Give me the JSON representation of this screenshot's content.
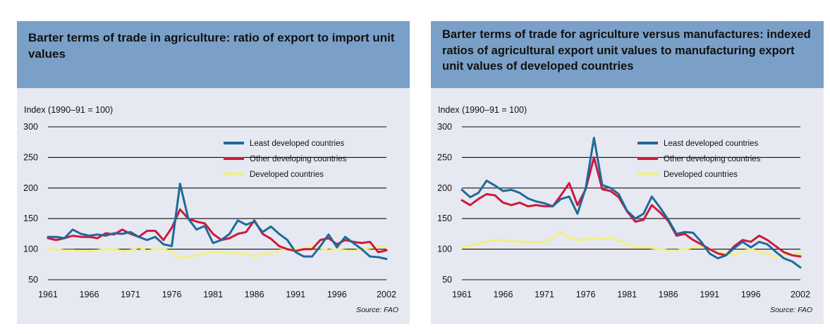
{
  "charts": [
    {
      "title": "Barter terms of trade in agriculture: ratio of export to import unit values",
      "ylabel": "Index (1990–91 = 100)",
      "source": "Source: FAO"
    },
    {
      "title": "Barter terms of trade for agriculture versus manufactures: indexed ratios of agricultural export unit values to manufacturing export unit values of developed countries",
      "ylabel": "Index (1990–91 = 100)",
      "source": "Source: FAO"
    }
  ],
  "chart_data": [
    {
      "type": "line",
      "title": "Barter terms of trade in agriculture: ratio of export to import unit values",
      "ylabel": "Index (1990–91 = 100)",
      "xlabel": "",
      "x": [
        1961,
        1962,
        1963,
        1964,
        1965,
        1966,
        1967,
        1968,
        1969,
        1970,
        1971,
        1972,
        1973,
        1974,
        1975,
        1976,
        1977,
        1978,
        1979,
        1980,
        1981,
        1982,
        1983,
        1984,
        1985,
        1986,
        1987,
        1988,
        1989,
        1990,
        1991,
        1992,
        1993,
        1994,
        1995,
        1996,
        1997,
        1998,
        1999,
        2000,
        2001,
        2002
      ],
      "xticks": [
        1961,
        1966,
        1971,
        1976,
        1981,
        1986,
        1991,
        1996,
        2002
      ],
      "yticks": [
        50,
        100,
        150,
        200,
        250,
        300
      ],
      "ylim": [
        50,
        300
      ],
      "xlim": [
        1961,
        2002
      ],
      "grid": true,
      "legend_position": "top-right",
      "series": [
        {
          "name": "Least developed countries",
          "color": "#1f6a9a",
          "values": [
            120,
            120,
            118,
            132,
            125,
            122,
            124,
            122,
            126,
            125,
            128,
            120,
            115,
            120,
            108,
            105,
            207,
            150,
            132,
            138,
            110,
            115,
            125,
            147,
            140,
            145,
            128,
            137,
            125,
            115,
            95,
            88,
            88,
            105,
            124,
            103,
            120,
            110,
            100,
            88,
            87,
            84
          ]
        },
        {
          "name": "Other developing countries",
          "color": "#d0183c",
          "values": [
            118,
            115,
            118,
            122,
            120,
            120,
            118,
            126,
            124,
            132,
            125,
            120,
            130,
            130,
            115,
            135,
            165,
            150,
            145,
            142,
            125,
            115,
            118,
            125,
            128,
            147,
            125,
            117,
            105,
            100,
            97,
            100,
            100,
            115,
            118,
            108,
            115,
            112,
            110,
            112,
            95,
            98
          ]
        },
        {
          "name": "Developed countries",
          "color": "#f2ef82",
          "values": [
            100,
            100,
            98,
            98,
            97,
            97,
            98,
            100,
            100,
            97,
            98,
            103,
            97,
            100,
            100,
            96,
            85,
            88,
            90,
            92,
            96,
            95,
            93,
            94,
            92,
            88,
            92,
            93,
            98,
            100,
            100,
            102,
            104,
            102,
            98,
            100,
            98,
            97,
            100,
            102,
            104,
            105
          ]
        }
      ]
    },
    {
      "type": "line",
      "title": "Barter terms of trade for agriculture versus manufactures: indexed ratios of agricultural export unit values to manufacturing export unit values of developed countries",
      "ylabel": "Index (1990–91 = 100)",
      "xlabel": "",
      "x": [
        1961,
        1962,
        1963,
        1964,
        1965,
        1966,
        1967,
        1968,
        1969,
        1970,
        1971,
        1972,
        1973,
        1974,
        1975,
        1976,
        1977,
        1978,
        1979,
        1980,
        1981,
        1982,
        1983,
        1984,
        1985,
        1986,
        1987,
        1988,
        1989,
        1990,
        1991,
        1992,
        1993,
        1994,
        1995,
        1996,
        1997,
        1998,
        1999,
        2000,
        2001,
        2002
      ],
      "xticks": [
        1961,
        1966,
        1971,
        1976,
        1981,
        1986,
        1991,
        1996,
        2002
      ],
      "yticks": [
        50,
        100,
        150,
        200,
        250,
        300
      ],
      "ylim": [
        50,
        300
      ],
      "xlim": [
        1961,
        2002
      ],
      "grid": true,
      "legend_position": "top-right",
      "series": [
        {
          "name": "Least developed countries",
          "color": "#1f6a9a",
          "values": [
            197,
            185,
            192,
            212,
            204,
            195,
            197,
            192,
            183,
            178,
            175,
            170,
            182,
            186,
            158,
            200,
            282,
            205,
            200,
            190,
            163,
            150,
            158,
            186,
            168,
            148,
            125,
            128,
            127,
            112,
            93,
            85,
            90,
            102,
            112,
            103,
            112,
            108,
            96,
            85,
            80,
            70
          ]
        },
        {
          "name": "Other developing countries",
          "color": "#d0183c",
          "values": [
            180,
            172,
            182,
            190,
            188,
            176,
            172,
            176,
            170,
            172,
            170,
            170,
            188,
            208,
            172,
            198,
            250,
            198,
            195,
            185,
            162,
            145,
            148,
            172,
            160,
            146,
            122,
            125,
            115,
            108,
            100,
            93,
            90,
            105,
            115,
            112,
            122,
            115,
            105,
            95,
            90,
            88
          ]
        },
        {
          "name": "Developed countries",
          "color": "#f2ef82",
          "values": [
            104,
            105,
            109,
            112,
            115,
            115,
            112,
            113,
            111,
            112,
            110,
            119,
            128,
            118,
            115,
            116,
            118,
            116,
            119,
            114,
            108,
            103,
            103,
            102,
            100,
            98,
            98,
            100,
            103,
            105,
            100,
            95,
            93,
            90,
            97,
            100,
            96,
            92,
            88,
            90,
            92,
            92
          ]
        }
      ]
    }
  ]
}
